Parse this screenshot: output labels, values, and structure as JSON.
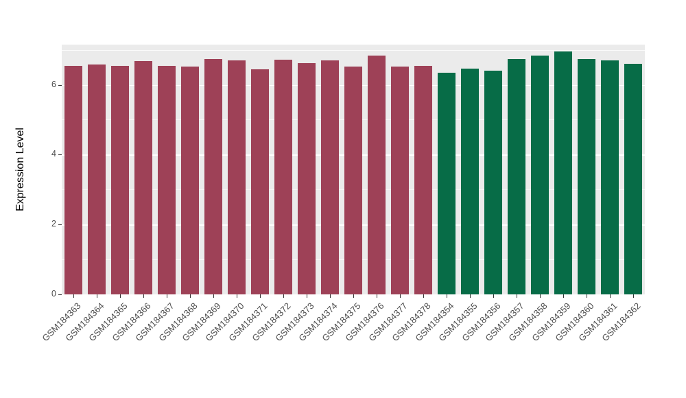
{
  "chart_data": {
    "type": "bar",
    "title": "",
    "xlabel": "",
    "ylabel": "Expression Level",
    "ylim": [
      0,
      7.15
    ],
    "yticks": [
      0,
      2,
      4,
      6
    ],
    "yticks_minor": [
      1,
      3,
      5,
      7
    ],
    "grid": "on",
    "legend_position": "none",
    "panel_background": "#EBEBEB",
    "gridline_color": "#FFFFFF",
    "axis_text_color": "#4D4D4D",
    "palette": [
      "#9E4157",
      "#076C47"
    ],
    "categories": [
      "GSM184363",
      "GSM184364",
      "GSM184365",
      "GSM184366",
      "GSM184367",
      "GSM184368",
      "GSM184369",
      "GSM184370",
      "GSM184371",
      "GSM184372",
      "GSM184373",
      "GSM184374",
      "GSM184375",
      "GSM184376",
      "GSM184377",
      "GSM184378",
      "GSM184354",
      "GSM184355",
      "GSM184356",
      "GSM184357",
      "GSM184358",
      "GSM184359",
      "GSM184360",
      "GSM184361",
      "GSM184362"
    ],
    "values": [
      6.55,
      6.58,
      6.55,
      6.68,
      6.55,
      6.53,
      6.73,
      6.7,
      6.45,
      6.71,
      6.62,
      6.7,
      6.52,
      6.84,
      6.52,
      6.54,
      6.35,
      6.47,
      6.4,
      6.74,
      6.84,
      6.95,
      6.73,
      6.69,
      6.61
    ],
    "bar_groups": [
      0,
      0,
      0,
      0,
      0,
      0,
      0,
      0,
      0,
      0,
      0,
      0,
      0,
      0,
      0,
      0,
      1,
      1,
      1,
      1,
      1,
      1,
      1,
      1,
      1
    ]
  }
}
